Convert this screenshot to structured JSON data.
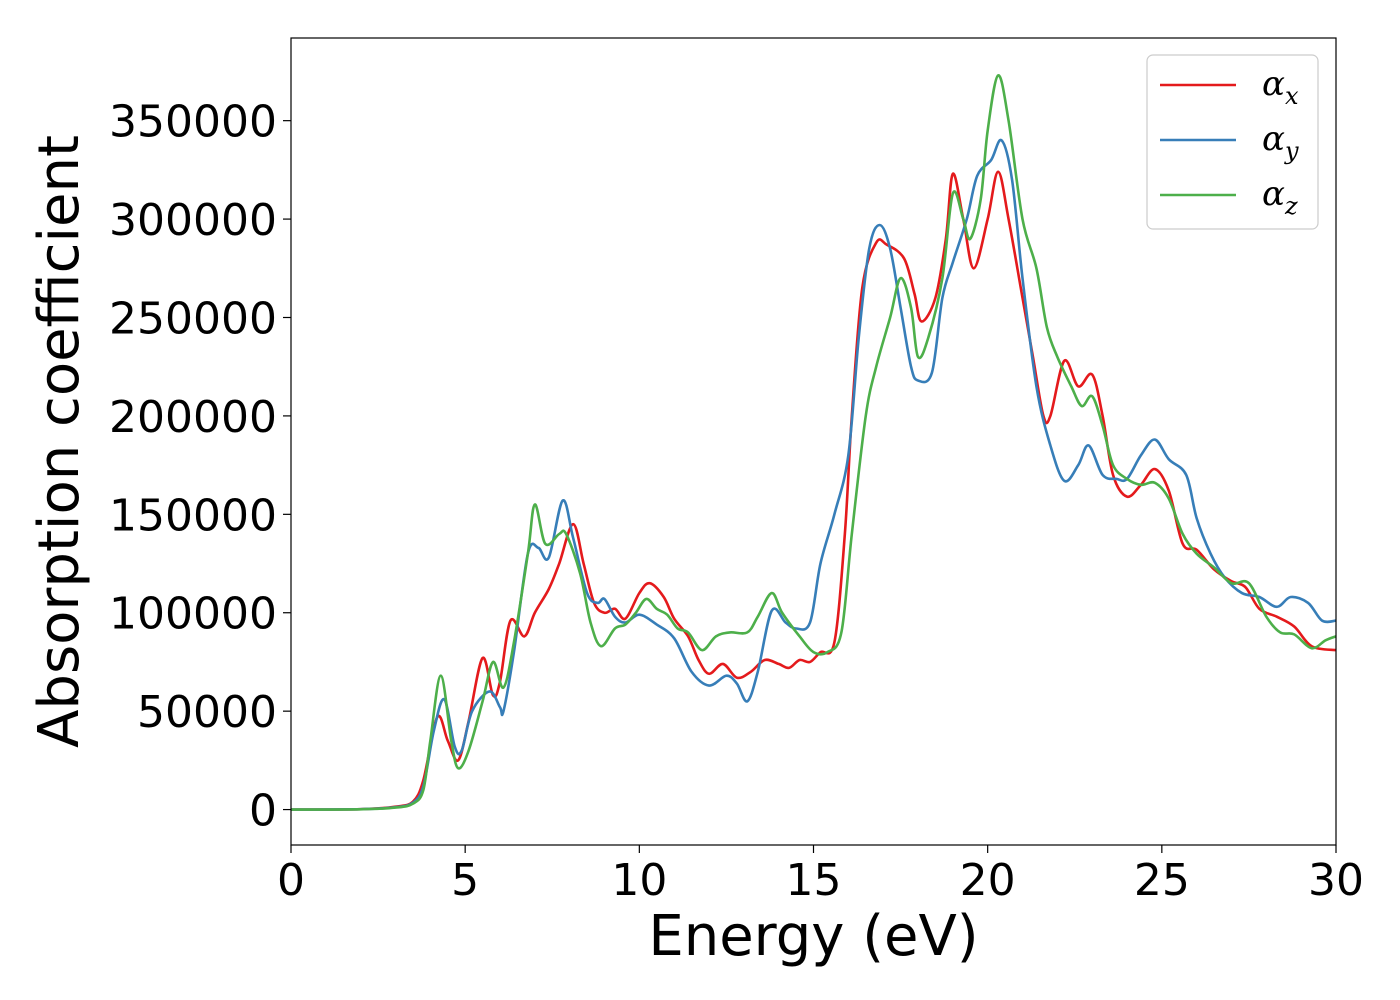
{
  "chart_data": {
    "type": "line",
    "title": "",
    "xlabel": "Energy (eV)",
    "ylabel": "Absorption coefficient",
    "xlim": [
      0,
      30
    ],
    "ylim": [
      -18000,
      392000
    ],
    "xticks": [
      0,
      5,
      10,
      15,
      20,
      25,
      30
    ],
    "yticks": [
      0,
      50000,
      100000,
      150000,
      200000,
      250000,
      300000,
      350000
    ],
    "grid": false,
    "legend": "top-right",
    "series": [
      {
        "name": "α",
        "subscript": "x",
        "color": "#e41a1c",
        "points": [
          [
            0,
            0
          ],
          [
            2,
            200
          ],
          [
            3,
            1500
          ],
          [
            3.5,
            4000
          ],
          [
            3.8,
            15000
          ],
          [
            4.2,
            47000
          ],
          [
            4.5,
            35000
          ],
          [
            4.8,
            25000
          ],
          [
            5.1,
            45000
          ],
          [
            5.5,
            77000
          ],
          [
            5.8,
            58000
          ],
          [
            6.0,
            65000
          ],
          [
            6.3,
            96000
          ],
          [
            6.7,
            88000
          ],
          [
            7.0,
            100000
          ],
          [
            7.4,
            112000
          ],
          [
            7.7,
            125000
          ],
          [
            8.1,
            145000
          ],
          [
            8.4,
            125000
          ],
          [
            8.7,
            105000
          ],
          [
            9.0,
            100000
          ],
          [
            9.3,
            102000
          ],
          [
            9.6,
            97000
          ],
          [
            10.0,
            110000
          ],
          [
            10.3,
            115000
          ],
          [
            10.7,
            108000
          ],
          [
            11.0,
            97000
          ],
          [
            11.4,
            88000
          ],
          [
            11.7,
            76000
          ],
          [
            12.0,
            69000
          ],
          [
            12.4,
            74000
          ],
          [
            12.8,
            67000
          ],
          [
            13.2,
            70000
          ],
          [
            13.6,
            76000
          ],
          [
            14.0,
            74000
          ],
          [
            14.3,
            72000
          ],
          [
            14.6,
            76000
          ],
          [
            14.9,
            75000
          ],
          [
            15.2,
            80000
          ],
          [
            15.6,
            85000
          ],
          [
            15.9,
            140000
          ],
          [
            16.1,
            200000
          ],
          [
            16.4,
            265000
          ],
          [
            16.8,
            288000
          ],
          [
            17.1,
            287000
          ],
          [
            17.6,
            280000
          ],
          [
            17.9,
            262000
          ],
          [
            18.1,
            248000
          ],
          [
            18.5,
            260000
          ],
          [
            18.8,
            290000
          ],
          [
            19.0,
            323000
          ],
          [
            19.3,
            300000
          ],
          [
            19.6,
            275000
          ],
          [
            20.0,
            300000
          ],
          [
            20.3,
            324000
          ],
          [
            20.6,
            300000
          ],
          [
            21.0,
            260000
          ],
          [
            21.3,
            230000
          ],
          [
            21.6,
            200000
          ],
          [
            21.8,
            200000
          ],
          [
            22.2,
            228000
          ],
          [
            22.6,
            215000
          ],
          [
            23.0,
            221000
          ],
          [
            23.3,
            200000
          ],
          [
            23.6,
            170000
          ],
          [
            24.0,
            159000
          ],
          [
            24.4,
            165000
          ],
          [
            24.8,
            173000
          ],
          [
            25.2,
            162000
          ],
          [
            25.6,
            135000
          ],
          [
            26.0,
            132000
          ],
          [
            26.5,
            122000
          ],
          [
            27.0,
            116000
          ],
          [
            27.4,
            113000
          ],
          [
            27.8,
            102000
          ],
          [
            28.3,
            98000
          ],
          [
            28.8,
            93000
          ],
          [
            29.3,
            83000
          ],
          [
            30.0,
            81000
          ]
        ]
      },
      {
        "name": "α",
        "subscript": "y",
        "color": "#377eb8",
        "points": [
          [
            0,
            0
          ],
          [
            2,
            200
          ],
          [
            3,
            1200
          ],
          [
            3.5,
            3500
          ],
          [
            3.8,
            12000
          ],
          [
            4.1,
            40000
          ],
          [
            4.4,
            56000
          ],
          [
            4.7,
            32000
          ],
          [
            4.9,
            30000
          ],
          [
            5.2,
            50000
          ],
          [
            5.7,
            60000
          ],
          [
            6.0,
            52000
          ],
          [
            6.1,
            50000
          ],
          [
            6.4,
            80000
          ],
          [
            6.8,
            130000
          ],
          [
            7.1,
            133000
          ],
          [
            7.4,
            128000
          ],
          [
            7.8,
            157000
          ],
          [
            8.1,
            138000
          ],
          [
            8.5,
            110000
          ],
          [
            8.8,
            105000
          ],
          [
            9.0,
            107000
          ],
          [
            9.3,
            98000
          ],
          [
            9.6,
            95000
          ],
          [
            10.0,
            99000
          ],
          [
            10.5,
            94000
          ],
          [
            11.0,
            87000
          ],
          [
            11.5,
            70000
          ],
          [
            12.0,
            63000
          ],
          [
            12.5,
            68000
          ],
          [
            12.8,
            64000
          ],
          [
            13.1,
            55000
          ],
          [
            13.4,
            70000
          ],
          [
            13.8,
            101000
          ],
          [
            14.2,
            95000
          ],
          [
            14.5,
            92000
          ],
          [
            14.9,
            95000
          ],
          [
            15.2,
            125000
          ],
          [
            15.6,
            150000
          ],
          [
            16.0,
            180000
          ],
          [
            16.3,
            240000
          ],
          [
            16.6,
            285000
          ],
          [
            16.9,
            297000
          ],
          [
            17.2,
            285000
          ],
          [
            17.5,
            255000
          ],
          [
            17.8,
            225000
          ],
          [
            18.0,
            218000
          ],
          [
            18.4,
            222000
          ],
          [
            18.7,
            260000
          ],
          [
            19.0,
            278000
          ],
          [
            19.4,
            300000
          ],
          [
            19.7,
            322000
          ],
          [
            20.1,
            330000
          ],
          [
            20.4,
            340000
          ],
          [
            20.7,
            320000
          ],
          [
            21.0,
            270000
          ],
          [
            21.4,
            215000
          ],
          [
            21.8,
            185000
          ],
          [
            22.2,
            167000
          ],
          [
            22.6,
            175000
          ],
          [
            22.9,
            185000
          ],
          [
            23.3,
            170000
          ],
          [
            23.7,
            168000
          ],
          [
            24.0,
            168000
          ],
          [
            24.4,
            180000
          ],
          [
            24.8,
            188000
          ],
          [
            25.2,
            178000
          ],
          [
            25.7,
            170000
          ],
          [
            26.0,
            148000
          ],
          [
            26.4,
            130000
          ],
          [
            26.8,
            118000
          ],
          [
            27.3,
            110000
          ],
          [
            27.8,
            108000
          ],
          [
            28.3,
            103000
          ],
          [
            28.7,
            108000
          ],
          [
            29.2,
            105000
          ],
          [
            29.6,
            96000
          ],
          [
            30.0,
            96000
          ]
        ]
      },
      {
        "name": "α",
        "subscript": "z",
        "color": "#4daf4a",
        "points": [
          [
            0,
            0
          ],
          [
            2,
            150
          ],
          [
            3,
            1000
          ],
          [
            3.5,
            3000
          ],
          [
            3.8,
            10000
          ],
          [
            4.0,
            35000
          ],
          [
            4.3,
            68000
          ],
          [
            4.6,
            35000
          ],
          [
            4.8,
            21000
          ],
          [
            5.1,
            30000
          ],
          [
            5.5,
            55000
          ],
          [
            5.8,
            75000
          ],
          [
            6.1,
            62000
          ],
          [
            6.4,
            85000
          ],
          [
            6.8,
            130000
          ],
          [
            7.0,
            155000
          ],
          [
            7.3,
            135000
          ],
          [
            7.7,
            140000
          ],
          [
            7.9,
            140000
          ],
          [
            8.3,
            120000
          ],
          [
            8.6,
            95000
          ],
          [
            8.9,
            83000
          ],
          [
            9.3,
            92000
          ],
          [
            9.6,
            94000
          ],
          [
            9.9,
            100000
          ],
          [
            10.2,
            107000
          ],
          [
            10.5,
            102000
          ],
          [
            10.8,
            99000
          ],
          [
            11.1,
            92000
          ],
          [
            11.4,
            90000
          ],
          [
            11.8,
            81000
          ],
          [
            12.2,
            88000
          ],
          [
            12.6,
            90000
          ],
          [
            13.1,
            90000
          ],
          [
            13.4,
            98000
          ],
          [
            13.8,
            110000
          ],
          [
            14.1,
            100000
          ],
          [
            14.6,
            88000
          ],
          [
            15.0,
            80000
          ],
          [
            15.4,
            80000
          ],
          [
            15.8,
            90000
          ],
          [
            16.1,
            140000
          ],
          [
            16.5,
            200000
          ],
          [
            16.8,
            225000
          ],
          [
            17.2,
            250000
          ],
          [
            17.5,
            270000
          ],
          [
            17.8,
            255000
          ],
          [
            18.0,
            230000
          ],
          [
            18.3,
            240000
          ],
          [
            18.7,
            270000
          ],
          [
            19.0,
            313000
          ],
          [
            19.3,
            300000
          ],
          [
            19.5,
            290000
          ],
          [
            19.8,
            310000
          ],
          [
            20.0,
            345000
          ],
          [
            20.3,
            373000
          ],
          [
            20.6,
            350000
          ],
          [
            21.0,
            300000
          ],
          [
            21.4,
            275000
          ],
          [
            21.7,
            245000
          ],
          [
            22.0,
            230000
          ],
          [
            22.4,
            215000
          ],
          [
            22.7,
            205000
          ],
          [
            23.0,
            210000
          ],
          [
            23.3,
            195000
          ],
          [
            23.6,
            175000
          ],
          [
            24.0,
            168000
          ],
          [
            24.4,
            165000
          ],
          [
            24.8,
            166000
          ],
          [
            25.2,
            158000
          ],
          [
            25.6,
            140000
          ],
          [
            26.0,
            130000
          ],
          [
            26.5,
            123000
          ],
          [
            27.0,
            115000
          ],
          [
            27.5,
            115000
          ],
          [
            28.0,
            98000
          ],
          [
            28.4,
            90000
          ],
          [
            28.8,
            89000
          ],
          [
            29.3,
            82000
          ],
          [
            29.7,
            86000
          ],
          [
            30.0,
            88000
          ]
        ]
      }
    ]
  }
}
